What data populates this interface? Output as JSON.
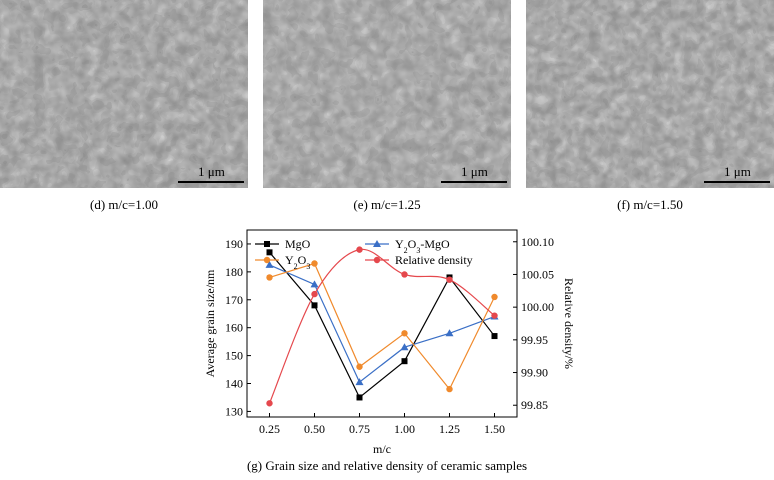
{
  "micrographs": [
    {
      "caption": "(d) m/c=1.00",
      "scale_label": "1 μm"
    },
    {
      "caption": "(e) m/c=1.25",
      "scale_label": "1 μm"
    },
    {
      "caption": "(f) m/c=1.50",
      "scale_label": "1 μm"
    }
  ],
  "figure_caption": "(g) Grain size and relative density of ceramic samples",
  "chart_data": {
    "type": "line",
    "title": "",
    "xlabel": "m/c",
    "ylabel": "Average grain size/nm",
    "y2label": "Relative density/%",
    "categories": [
      "0.25",
      "0.50",
      "0.75",
      "1.00",
      "1.25",
      "1.50"
    ],
    "x": [
      0.25,
      0.5,
      0.75,
      1.0,
      1.25,
      1.5
    ],
    "xlim": [
      0.125,
      1.625
    ],
    "ylim": [
      128,
      195
    ],
    "y2lim": [
      99.832,
      100.118
    ],
    "yticks": [
      130,
      140,
      150,
      160,
      170,
      180,
      190
    ],
    "y2ticks": [
      "99.85",
      "99.90",
      "99.95",
      "100.00",
      "100.05",
      "100.10"
    ],
    "legend_placement": "top",
    "grid": false,
    "series": [
      {
        "name": "MgO",
        "axis": "left",
        "color": "#000000",
        "marker": "square",
        "values": [
          187,
          168,
          135,
          148,
          178,
          157
        ]
      },
      {
        "name": "Y2O3-MgO",
        "axis": "left",
        "color": "#3a6fc6",
        "marker": "triangle",
        "values": [
          182.5,
          175.5,
          140.5,
          153,
          158,
          164
        ]
      },
      {
        "name": "Y2O3",
        "axis": "left",
        "color": "#f08a2c",
        "marker": "circle",
        "values": [
          178,
          183,
          146,
          158,
          138,
          171
        ]
      },
      {
        "name": "Relative density",
        "axis": "right",
        "color": "#e5484d",
        "marker": "circle",
        "smooth": true,
        "values": [
          99.853,
          100.02,
          100.088,
          100.05,
          100.042,
          99.987
        ]
      }
    ]
  }
}
